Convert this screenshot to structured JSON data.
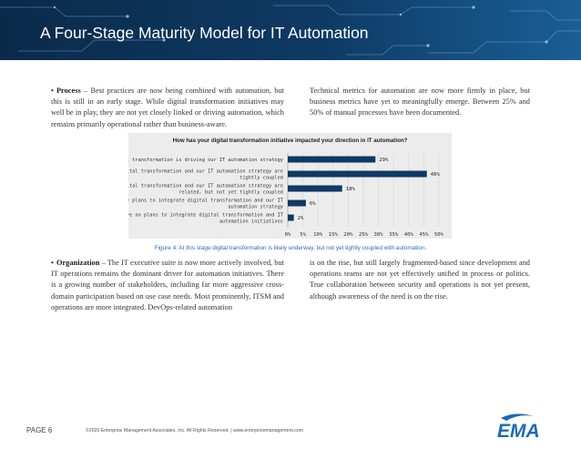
{
  "header": {
    "title": "A Four-Stage Maturity Model for IT Automation"
  },
  "paragraphs": {
    "process_label": "Process",
    "process_text": " – Best practices are now being combined with automation, but this is still in an early stage. While digital transformation initiatives may well be in play, they are not yet closely linked or driving automation, which remains primarily operational rather than business-aware.",
    "technical_text": "Technical metrics for automation are now more firmly in place, but business metrics have yet to meaningfully emerge. Between 25% and 50% of manual processes have been documented.",
    "organization_label": "Organization",
    "organization_text": " – The IT executive suite is now more actively involved, but IT operations remains the dominant driver for automation initiatives. There is a growing number of stakeholders, including far more aggressive cross-domain participation based on use case needs. Most prominently, ITSM and operations are more integrated. DevOps-related automation",
    "continuation_text": "is on the rise, but still largely fragmented-based since development and operations teams are not yet effectively unified in process or politics. True collaboration between security and operations is not yet present, although awareness of the need is on the rise."
  },
  "chart_data": {
    "type": "bar",
    "orientation": "horizontal",
    "title": "How has your digital transformation initiative impacted your direction in IT automation?",
    "categories": [
      [
        "Digital transformation is driving our IT automation strategy"
      ],
      [
        "Digital transformation and our IT automation strategy are",
        "tightly coupled"
      ],
      [
        "Digital transformation and our IT automation strategy are",
        "related, but not yet tightly coupled"
      ],
      [
        "We have plans to integrate digital transformation and our IT",
        "automation strategy"
      ],
      [
        "We have no plans to integrate digital transformation and IT",
        "automation initiatives"
      ]
    ],
    "values": [
      29,
      46,
      18,
      6,
      2
    ],
    "value_labels": [
      "29%",
      "46%",
      "18%",
      "6%",
      "2%"
    ],
    "xlim": [
      0,
      50
    ],
    "xticks": [
      "0%",
      "5%",
      "10%",
      "15%",
      "20%",
      "25%",
      "30%",
      "35%",
      "40%",
      "45%",
      "50%"
    ],
    "grid": true,
    "bar_color": "#0e3a64",
    "background": "#ececec"
  },
  "caption": "Figure 4: At this stage digital transformation is likely underway, but not yet tightly coupled with automation.",
  "footer": {
    "page": "PAGE 6",
    "copyright": "©2020 Enterprise Management Associates, Inc. All Rights Reserved. | www.enterprisemanagement.com",
    "logo_text": "EMA"
  },
  "colors": {
    "header_dark": "#0b2a4a",
    "header_light": "#1a5f96",
    "caption": "#2a6db5",
    "logo": "#1c6bb5"
  },
  "icons": {
    "logo": "ema-logo-icon"
  }
}
